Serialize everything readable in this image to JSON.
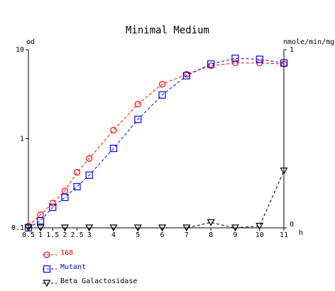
{
  "chart_data": {
    "type": "line",
    "title": "Minimal Medium",
    "left_axis": {
      "label": "od",
      "scale": "log",
      "range": [
        0.1,
        10
      ],
      "ticks": [
        {
          "value": 10,
          "label": "10"
        },
        {
          "value": 1,
          "label": "1"
        },
        {
          "value": 0.1,
          "label": "0.1"
        }
      ]
    },
    "right_axis": {
      "label": "nmole/min/mg",
      "scale": "linear",
      "range": [
        0,
        1
      ],
      "ticks": [
        {
          "value": 1,
          "label": "1"
        },
        {
          "value": 0,
          "label": "0"
        }
      ]
    },
    "x_axis": {
      "unit_label": "h",
      "range": [
        0.5,
        11
      ],
      "ticks": [
        {
          "value": 0.5,
          "label": "0.5"
        },
        {
          "value": 1,
          "label": "1"
        },
        {
          "value": 1.5,
          "label": "1.5"
        },
        {
          "value": 2,
          "label": "2"
        },
        {
          "value": 2.5,
          "label": "2.5"
        },
        {
          "value": 3,
          "label": "3"
        },
        {
          "value": 4,
          "label": "4"
        },
        {
          "value": 5,
          "label": "5"
        },
        {
          "value": 6,
          "label": "6"
        },
        {
          "value": 7,
          "label": "7"
        },
        {
          "value": 8,
          "label": "8"
        },
        {
          "value": 9,
          "label": "9"
        },
        {
          "value": 10,
          "label": "10"
        },
        {
          "value": 11,
          "label": "11"
        }
      ]
    },
    "grid": false,
    "legend_position": "bottom-left",
    "series": [
      {
        "name": "168",
        "axis": "left",
        "marker": "circle",
        "color": "#ff0000",
        "x": [
          0.5,
          1,
          1.5,
          2,
          2.5,
          3,
          4,
          5,
          6,
          7,
          8,
          9,
          10,
          11
        ],
        "y": [
          0.105,
          0.14,
          0.19,
          0.26,
          0.42,
          0.6,
          1.25,
          2.45,
          4.1,
          5.3,
          6.6,
          7.1,
          7.1,
          6.9
        ]
      },
      {
        "name": "Mutant",
        "axis": "left",
        "marker": "square",
        "color": "#0000ff",
        "x": [
          0.5,
          1,
          1.5,
          2,
          2.5,
          3,
          4,
          5,
          6,
          7,
          8,
          9,
          10,
          11
        ],
        "y": [
          0.1,
          0.12,
          0.17,
          0.22,
          0.29,
          0.39,
          0.78,
          1.65,
          3.1,
          5.1,
          6.9,
          8.0,
          7.8,
          7.1
        ]
      },
      {
        "name": "Beta Galactosidase",
        "axis": "right",
        "marker": "triangle-down",
        "color": "#000000",
        "x": [
          0.5,
          1,
          2,
          3,
          4,
          5,
          6,
          7,
          8,
          9,
          10,
          11
        ],
        "y": [
          0,
          0,
          0,
          0,
          0,
          0,
          0,
          0,
          0.03,
          0,
          0.01,
          0.32
        ]
      }
    ]
  }
}
